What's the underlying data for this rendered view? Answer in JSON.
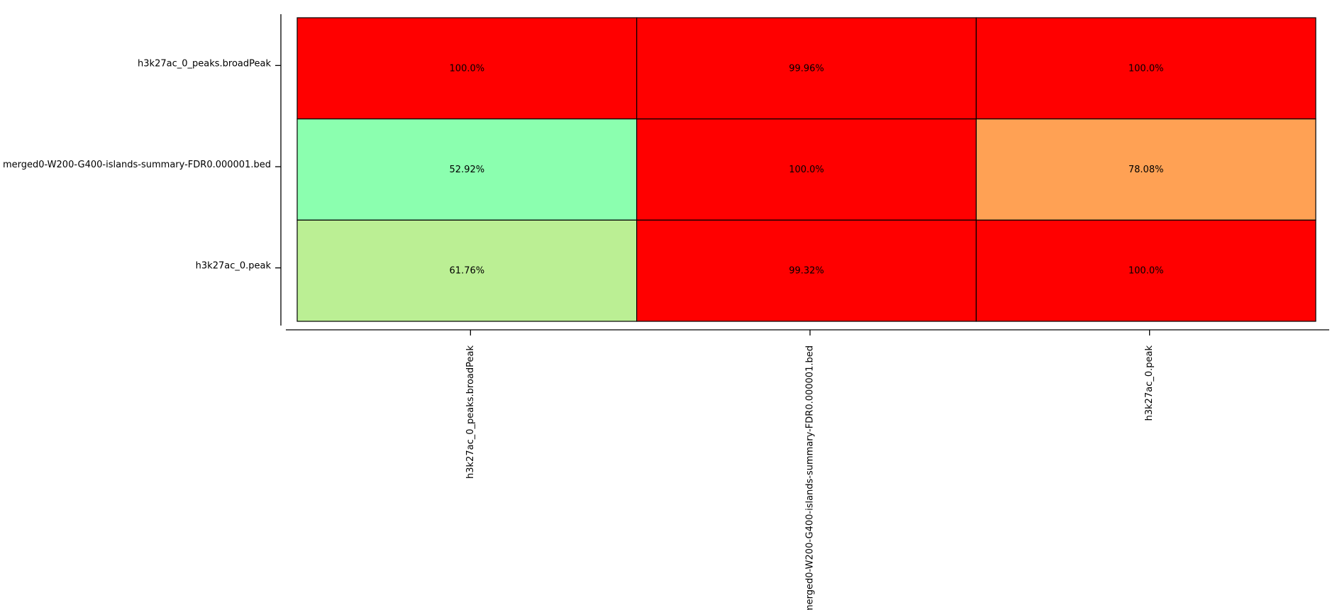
{
  "chart_data": {
    "type": "heatmap",
    "rows": [
      "h3k27ac_0_peaks.broadPeak",
      "merged0-W200-G400-islands-summary-FDR0.000001.bed",
      "h3k27ac_0.peak"
    ],
    "columns": [
      "h3k27ac_0_peaks.broadPeak",
      "merged0-W200-G400-islands-summary-FDR0.000001.bed",
      "h3k27ac_0.peak"
    ],
    "values": [
      [
        100.0,
        99.96,
        100.0
      ],
      [
        52.92,
        100.0,
        78.08
      ],
      [
        61.76,
        99.32,
        100.0
      ]
    ],
    "cell_labels": [
      [
        "100.0%",
        "99.96%",
        "100.0%"
      ],
      [
        "52.92%",
        "100.0%",
        "78.08%"
      ],
      [
        "61.76%",
        "99.32%",
        "100.0%"
      ]
    ],
    "cell_colors": [
      [
        "#ff0000",
        "#ff0000",
        "#ff0000"
      ],
      [
        "#8bffaf",
        "#ff0000",
        "#ffa154"
      ],
      [
        "#bbef94",
        "#ff0000",
        "#ff0000"
      ]
    ],
    "grid": false,
    "legend": "none"
  }
}
